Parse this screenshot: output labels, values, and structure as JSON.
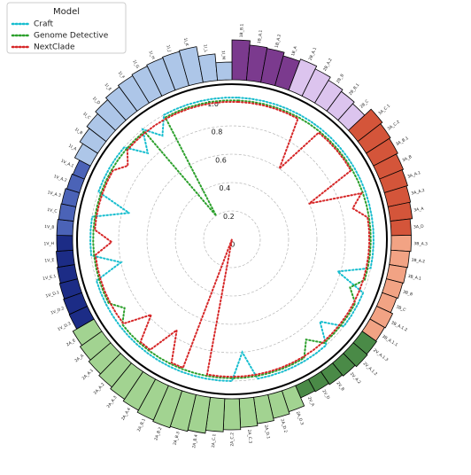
{
  "chart_data": {
    "type": "radial_bar_line",
    "legend_title": "Model",
    "legend": "upper left",
    "categories": [
      "1B_B.1",
      "1B_A.1",
      "1B_A.2",
      "1B_A",
      "2B_A.1",
      "2B_A.2",
      "2B_B",
      "2B_B.1",
      "2B_C",
      "3A_C.1",
      "3A_C.2",
      "3A_B.1",
      "3A_B",
      "3A_A.1",
      "3A_A.2",
      "3A_A",
      "3A_D",
      "3B_A.3",
      "3B_A.2",
      "3B_A.1",
      "3B_B",
      "3B_C",
      "3B_A.1.2",
      "3B_A.1.1",
      "2V_A.1.3",
      "2V_A.1.2",
      "2V_A.2",
      "2V_B",
      "2V_D",
      "2V_A",
      "2A_D.3",
      "2A_D.2",
      "2A_D.1",
      "2A_C.3",
      "2A_C.2",
      "2A_C.1",
      "2A_B.4",
      "2A_B.3",
      "2A_B.2",
      "2A_B.1",
      "2A_A.4",
      "2A_A.3",
      "2A_A.2",
      "2A_A.1",
      "2A_A",
      "2A_E",
      "1V_D.3",
      "1V_D.2",
      "1V_D.1",
      "1V_E.1",
      "1V_E",
      "1V_H",
      "1V_B",
      "1V_C",
      "1V_A.3",
      "1V_A.2",
      "1V_A.1",
      "1I_A",
      "1I_B",
      "1I_C",
      "1I_D",
      "1I_E",
      "1I_F",
      "1I_G",
      "1I_H",
      "1I_J",
      "1I_K",
      "1I_L",
      "1I_M"
    ],
    "bar_values": [
      90,
      80,
      78,
      70,
      75,
      68,
      60,
      55,
      50,
      70,
      65,
      62,
      58,
      55,
      52,
      50,
      45,
      45,
      42,
      40,
      38,
      35,
      40,
      38,
      40,
      42,
      38,
      35,
      32,
      30,
      50,
      55,
      60,
      65,
      70,
      75,
      82,
      85,
      88,
      85,
      80,
      75,
      70,
      65,
      60,
      55,
      45,
      44,
      42,
      40,
      38,
      36,
      36,
      34,
      33,
      30,
      28,
      40,
      48,
      55,
      62,
      68,
      72,
      75,
      78,
      80,
      82,
      60,
      40
    ],
    "bar_colors": [
      "#7b3a8e",
      "#7b3a8e",
      "#7b3a8e",
      "#7b3a8e",
      "#dcc4ee",
      "#dcc4ee",
      "#dcc4ee",
      "#dcc4ee",
      "#dcc4ee",
      "#d4553a",
      "#d4553a",
      "#d4553a",
      "#d4553a",
      "#d4553a",
      "#d4553a",
      "#d4553a",
      "#d4553a",
      "#f2a384",
      "#f2a384",
      "#f2a384",
      "#f2a384",
      "#f2a384",
      "#f2a384",
      "#f2a384",
      "#4a8a47",
      "#4a8a47",
      "#4a8a47",
      "#4a8a47",
      "#4a8a47",
      "#4a8a47",
      "#a2d391",
      "#a2d391",
      "#a2d391",
      "#a2d391",
      "#a2d391",
      "#a2d391",
      "#a2d391",
      "#a2d391",
      "#a2d391",
      "#a2d391",
      "#a2d391",
      "#a2d391",
      "#a2d391",
      "#a2d391",
      "#a2d391",
      "#a2d391",
      "#1c2c86",
      "#1c2c86",
      "#1c2c86",
      "#1c2c86",
      "#1c2c86",
      "#1c2c86",
      "#4b63b7",
      "#4b63b7",
      "#4b63b7",
      "#4b63b7",
      "#4b63b7",
      "#adc6e8",
      "#adc6e8",
      "#adc6e8",
      "#adc6e8",
      "#adc6e8",
      "#adc6e8",
      "#adc6e8",
      "#adc6e8",
      "#adc6e8",
      "#adc6e8",
      "#adc6e8",
      "#adc6e8"
    ],
    "series": [
      {
        "name": "Craft",
        "color": "#17becf",
        "values": [
          1,
          1,
          1,
          1,
          1,
          1,
          1,
          1,
          1,
          1,
          1,
          1,
          1,
          1,
          1,
          1,
          1,
          1,
          1,
          1,
          0.78,
          1,
          1,
          1,
          1,
          0.85,
          1,
          1,
          1,
          1,
          1,
          1,
          1,
          0.8,
          1,
          1,
          1,
          1,
          1,
          1,
          1,
          1,
          1,
          1,
          1,
          1,
          1,
          1,
          1,
          0.8,
          1,
          1,
          1,
          1,
          0.75,
          1,
          1,
          1,
          1,
          1,
          0.85,
          1,
          0.88,
          1,
          1,
          1,
          1,
          1,
          1
        ]
      },
      {
        "name": "Genome Detective",
        "color": "#2ca02c",
        "values": [
          0.98,
          0.98,
          0.98,
          0.98,
          0.98,
          0.98,
          0.98,
          0.98,
          0.98,
          0.98,
          0.98,
          0.98,
          0.98,
          0.98,
          0.98,
          0.98,
          0.98,
          0.98,
          0.98,
          0.98,
          0.98,
          0.9,
          0.98,
          0.98,
          0.98,
          0.98,
          0.98,
          0.88,
          0.98,
          0.98,
          0.98,
          0.98,
          0.98,
          0.98,
          0.98,
          0.98,
          0.98,
          0.98,
          0.98,
          0.98,
          0.98,
          0.98,
          0.98,
          0.98,
          0.98,
          0.9,
          0.98,
          0.98,
          0.98,
          0.98,
          0.98,
          0.98,
          0.98,
          0.98,
          0.98,
          0.98,
          0.98,
          0.98,
          0.98,
          0.98,
          0.98,
          0.98,
          0.2,
          0.98,
          0.98,
          0.98,
          0.98,
          0.98,
          0.98
        ]
      },
      {
        "name": "NextClade",
        "color": "#d62728",
        "values": [
          0.97,
          0.97,
          0.97,
          0.97,
          0.97,
          0.97,
          0.6,
          0.97,
          0.97,
          0.97,
          0.97,
          0.97,
          0.6,
          0.97,
          0.88,
          0.97,
          0.97,
          0.97,
          0.97,
          0.97,
          0.97,
          0.97,
          0.97,
          0.97,
          0.97,
          0.97,
          0.97,
          0.97,
          0.97,
          0.97,
          0.97,
          0.97,
          0.97,
          0.97,
          0.97,
          0.97,
          0.97,
          0,
          0.97,
          0.97,
          0.75,
          0.97,
          0.97,
          0.78,
          0.97,
          0.97,
          0.97,
          0.97,
          0.97,
          0.97,
          0.97,
          0.85,
          0.97,
          0.97,
          0.97,
          0.97,
          0.97,
          0.97,
          0.9,
          0.97,
          0.97,
          0.97,
          0.97,
          0.97,
          0.97,
          0.97,
          0.97,
          0.97,
          0.97
        ]
      }
    ],
    "ylim": [
      0,
      1
    ],
    "yticks": [
      0,
      0.2,
      0.4,
      0.6,
      0.8,
      {
        "value": 1,
        "label": "1.0"
      }
    ],
    "grid": true
  }
}
